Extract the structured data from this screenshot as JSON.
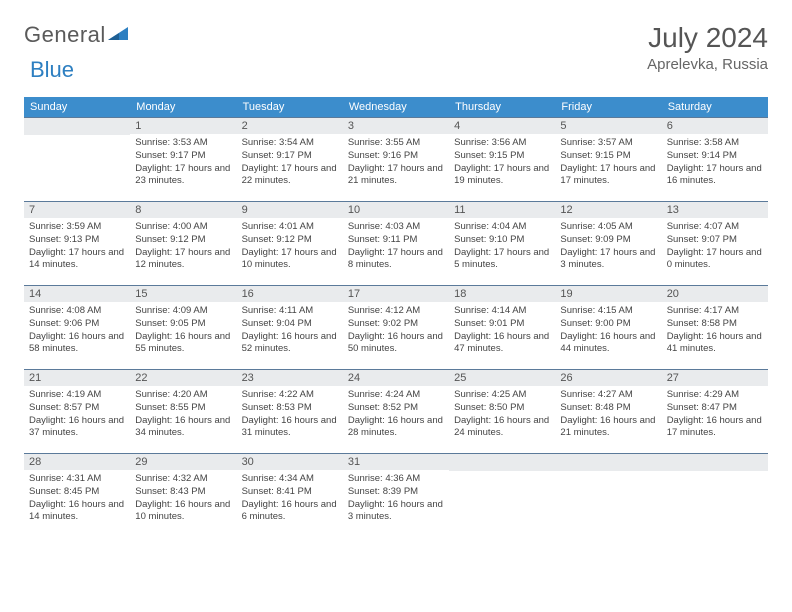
{
  "brand": {
    "word1": "General",
    "word2": "Blue"
  },
  "title": "July 2024",
  "location": "Aprelevka, Russia",
  "colors": {
    "header_bg": "#3c8dcc",
    "header_fg": "#ffffff",
    "daynum_bg": "#e9ebed",
    "cell_border": "#5b7a9a",
    "text": "#444444",
    "logo_gray": "#5a5a5a",
    "logo_blue": "#2d7fc1"
  },
  "weekdays": [
    "Sunday",
    "Monday",
    "Tuesday",
    "Wednesday",
    "Thursday",
    "Friday",
    "Saturday"
  ],
  "weeks": [
    [
      null,
      {
        "n": "1",
        "sr": "3:53 AM",
        "ss": "9:17 PM",
        "dl": "17 hours and 23 minutes."
      },
      {
        "n": "2",
        "sr": "3:54 AM",
        "ss": "9:17 PM",
        "dl": "17 hours and 22 minutes."
      },
      {
        "n": "3",
        "sr": "3:55 AM",
        "ss": "9:16 PM",
        "dl": "17 hours and 21 minutes."
      },
      {
        "n": "4",
        "sr": "3:56 AM",
        "ss": "9:15 PM",
        "dl": "17 hours and 19 minutes."
      },
      {
        "n": "5",
        "sr": "3:57 AM",
        "ss": "9:15 PM",
        "dl": "17 hours and 17 minutes."
      },
      {
        "n": "6",
        "sr": "3:58 AM",
        "ss": "9:14 PM",
        "dl": "17 hours and 16 minutes."
      }
    ],
    [
      {
        "n": "7",
        "sr": "3:59 AM",
        "ss": "9:13 PM",
        "dl": "17 hours and 14 minutes."
      },
      {
        "n": "8",
        "sr": "4:00 AM",
        "ss": "9:12 PM",
        "dl": "17 hours and 12 minutes."
      },
      {
        "n": "9",
        "sr": "4:01 AM",
        "ss": "9:12 PM",
        "dl": "17 hours and 10 minutes."
      },
      {
        "n": "10",
        "sr": "4:03 AM",
        "ss": "9:11 PM",
        "dl": "17 hours and 8 minutes."
      },
      {
        "n": "11",
        "sr": "4:04 AM",
        "ss": "9:10 PM",
        "dl": "17 hours and 5 minutes."
      },
      {
        "n": "12",
        "sr": "4:05 AM",
        "ss": "9:09 PM",
        "dl": "17 hours and 3 minutes."
      },
      {
        "n": "13",
        "sr": "4:07 AM",
        "ss": "9:07 PM",
        "dl": "17 hours and 0 minutes."
      }
    ],
    [
      {
        "n": "14",
        "sr": "4:08 AM",
        "ss": "9:06 PM",
        "dl": "16 hours and 58 minutes."
      },
      {
        "n": "15",
        "sr": "4:09 AM",
        "ss": "9:05 PM",
        "dl": "16 hours and 55 minutes."
      },
      {
        "n": "16",
        "sr": "4:11 AM",
        "ss": "9:04 PM",
        "dl": "16 hours and 52 minutes."
      },
      {
        "n": "17",
        "sr": "4:12 AM",
        "ss": "9:02 PM",
        "dl": "16 hours and 50 minutes."
      },
      {
        "n": "18",
        "sr": "4:14 AM",
        "ss": "9:01 PM",
        "dl": "16 hours and 47 minutes."
      },
      {
        "n": "19",
        "sr": "4:15 AM",
        "ss": "9:00 PM",
        "dl": "16 hours and 44 minutes."
      },
      {
        "n": "20",
        "sr": "4:17 AM",
        "ss": "8:58 PM",
        "dl": "16 hours and 41 minutes."
      }
    ],
    [
      {
        "n": "21",
        "sr": "4:19 AM",
        "ss": "8:57 PM",
        "dl": "16 hours and 37 minutes."
      },
      {
        "n": "22",
        "sr": "4:20 AM",
        "ss": "8:55 PM",
        "dl": "16 hours and 34 minutes."
      },
      {
        "n": "23",
        "sr": "4:22 AM",
        "ss": "8:53 PM",
        "dl": "16 hours and 31 minutes."
      },
      {
        "n": "24",
        "sr": "4:24 AM",
        "ss": "8:52 PM",
        "dl": "16 hours and 28 minutes."
      },
      {
        "n": "25",
        "sr": "4:25 AM",
        "ss": "8:50 PM",
        "dl": "16 hours and 24 minutes."
      },
      {
        "n": "26",
        "sr": "4:27 AM",
        "ss": "8:48 PM",
        "dl": "16 hours and 21 minutes."
      },
      {
        "n": "27",
        "sr": "4:29 AM",
        "ss": "8:47 PM",
        "dl": "16 hours and 17 minutes."
      }
    ],
    [
      {
        "n": "28",
        "sr": "4:31 AM",
        "ss": "8:45 PM",
        "dl": "16 hours and 14 minutes."
      },
      {
        "n": "29",
        "sr": "4:32 AM",
        "ss": "8:43 PM",
        "dl": "16 hours and 10 minutes."
      },
      {
        "n": "30",
        "sr": "4:34 AM",
        "ss": "8:41 PM",
        "dl": "16 hours and 6 minutes."
      },
      {
        "n": "31",
        "sr": "4:36 AM",
        "ss": "8:39 PM",
        "dl": "16 hours and 3 minutes."
      },
      null,
      null,
      null
    ]
  ],
  "labels": {
    "sunrise": "Sunrise:",
    "sunset": "Sunset:",
    "daylight": "Daylight:"
  }
}
